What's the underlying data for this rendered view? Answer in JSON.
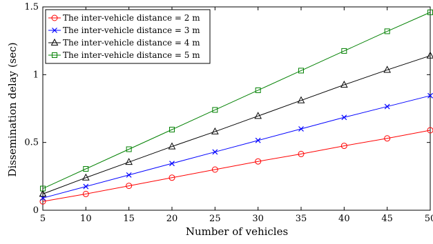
{
  "chart_data": {
    "type": "line",
    "xlabel": "Number of vehicles",
    "ylabel": "Dissemination delay (sec)",
    "x": [
      5,
      10,
      15,
      20,
      25,
      30,
      35,
      40,
      45,
      50
    ],
    "xlim": [
      5,
      50
    ],
    "ylim": [
      0,
      1.5
    ],
    "xticks": [
      "5",
      "10",
      "15",
      "20",
      "25",
      "30",
      "35",
      "40",
      "45",
      "50"
    ],
    "yticks": [
      "0",
      "0.5",
      "1",
      "1.5"
    ],
    "grid": false,
    "legend_position": "top-left",
    "series": [
      {
        "name": "The inter-vehicle distance = 2 m",
        "color": "#ff0000",
        "marker": "circle",
        "values": [
          0.065,
          0.12,
          0.18,
          0.24,
          0.3,
          0.36,
          0.415,
          0.475,
          0.53,
          0.59
        ]
      },
      {
        "name": "The inter-vehicle distance = 3 m",
        "color": "#0000ff",
        "marker": "x",
        "values": [
          0.09,
          0.175,
          0.26,
          0.345,
          0.43,
          0.515,
          0.6,
          0.685,
          0.765,
          0.845
        ]
      },
      {
        "name": "The inter-vehicle distance = 4 m",
        "color": "#000000",
        "marker": "triangle",
        "values": [
          0.12,
          0.24,
          0.355,
          0.47,
          0.58,
          0.695,
          0.81,
          0.925,
          1.035,
          1.14
        ]
      },
      {
        "name": "The inter-vehicle distance = 5 m",
        "color": "#008000",
        "marker": "square",
        "values": [
          0.16,
          0.305,
          0.45,
          0.595,
          0.74,
          0.885,
          1.03,
          1.175,
          1.32,
          1.46
        ]
      }
    ]
  }
}
